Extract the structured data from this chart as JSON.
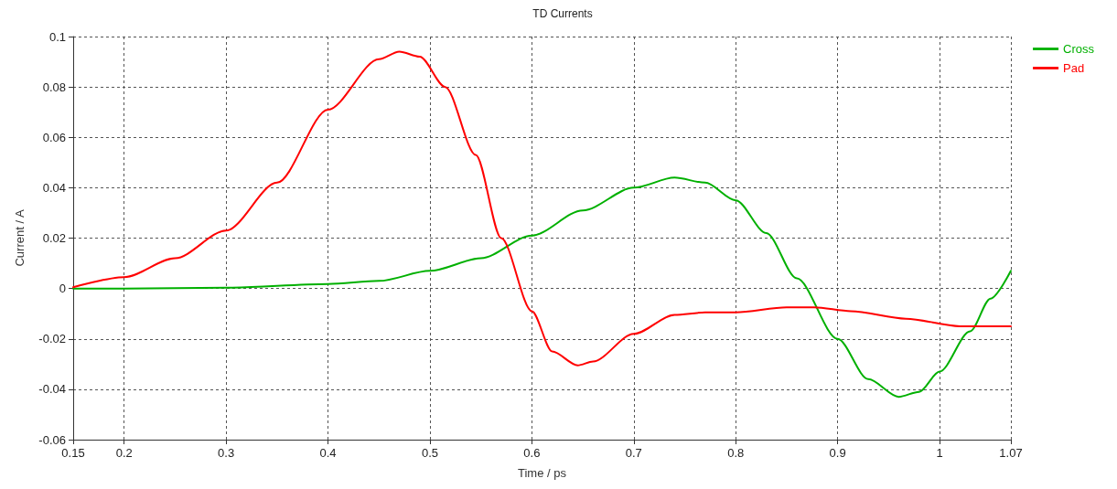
{
  "chart_data": {
    "type": "line",
    "title": "TD Currents",
    "xlabel": "Time / ps",
    "ylabel": "Current / A",
    "xlim": [
      0.15,
      1.07
    ],
    "xticks": [
      0.15,
      0.2,
      0.3,
      0.4,
      0.5,
      0.6,
      0.7,
      0.8,
      0.9,
      1,
      1.07
    ],
    "ylim": [
      -0.06,
      0.1
    ],
    "yticks": [
      -0.06,
      -0.04,
      -0.02,
      0,
      0.02,
      0.04,
      0.06,
      0.08,
      0.1
    ],
    "grid": true,
    "legend": "top right",
    "line_style": "solid",
    "series": [
      {
        "name": "Cross",
        "color": "#00b000",
        "x": [
          0.15,
          0.2,
          0.3,
          0.4,
          0.45,
          0.5,
          0.55,
          0.6,
          0.65,
          0.7,
          0.74,
          0.77,
          0.8,
          0.83,
          0.86,
          0.9,
          0.93,
          0.96,
          0.98,
          1.0,
          1.03,
          1.05,
          1.07
        ],
        "values": [
          0,
          0,
          0.0003,
          0.0018,
          0.003,
          0.007,
          0.012,
          0.021,
          0.031,
          0.04,
          0.044,
          0.042,
          0.035,
          0.022,
          0.004,
          -0.02,
          -0.036,
          -0.043,
          -0.041,
          -0.033,
          -0.017,
          -0.004,
          0.007
        ]
      },
      {
        "name": "Pad",
        "color": "#ff0000",
        "x": [
          0.15,
          0.2,
          0.25,
          0.3,
          0.35,
          0.4,
          0.45,
          0.47,
          0.49,
          0.515,
          0.545,
          0.57,
          0.6,
          0.62,
          0.645,
          0.66,
          0.7,
          0.74,
          0.77,
          0.8,
          0.85,
          0.877,
          0.913,
          0.967,
          1.02,
          1.07
        ],
        "values": [
          0.0005,
          0.0045,
          0.012,
          0.023,
          0.042,
          0.071,
          0.091,
          0.094,
          0.092,
          0.08,
          0.053,
          0.02,
          -0.009,
          -0.025,
          -0.0305,
          -0.029,
          -0.018,
          -0.0105,
          -0.0095,
          -0.0095,
          -0.0075,
          -0.0075,
          -0.009,
          -0.012,
          -0.015,
          -0.015
        ]
      }
    ]
  }
}
